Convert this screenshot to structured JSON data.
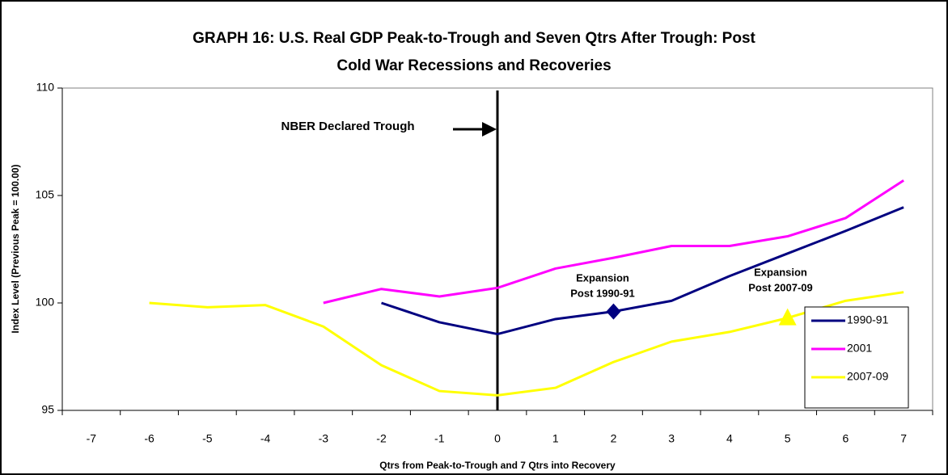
{
  "chart_data": {
    "type": "line",
    "title": [
      "GRAPH 16: U.S. Real GDP Peak-to-Trough and Seven Qtrs After Trough: Post",
      "Cold War Recessions and Recoveries"
    ],
    "x_label": "Qtrs from Peak-to-Trough and 7 Qtrs into Recovery",
    "y_label": "Index Level (Previous Peak = 100.00)",
    "categories": [
      -7,
      -6,
      -5,
      -4,
      -3,
      -2,
      -1,
      0,
      1,
      2,
      3,
      4,
      5,
      6,
      7
    ],
    "series": [
      {
        "name": "1990-91",
        "color": "#000080",
        "values": [
          null,
          null,
          null,
          null,
          null,
          100.0,
          99.1,
          98.55,
          99.25,
          99.6,
          100.1,
          101.25,
          102.3,
          103.35,
          104.45
        ],
        "marker": {
          "x": 2,
          "shape": "diamond"
        }
      },
      {
        "name": "2001",
        "color": "#ff00ff",
        "values": [
          null,
          null,
          null,
          null,
          100.0,
          100.65,
          100.3,
          100.7,
          101.6,
          102.1,
          102.65,
          102.65,
          103.1,
          103.95,
          105.7
        ]
      },
      {
        "name": "2007-09",
        "color": "#ffff00",
        "values": [
          null,
          100.0,
          99.8,
          99.9,
          98.9,
          97.1,
          95.9,
          95.7,
          96.05,
          97.25,
          98.2,
          98.65,
          99.3,
          100.1,
          100.5
        ],
        "marker": {
          "x": 5,
          "shape": "triangle"
        }
      }
    ],
    "ylim": [
      95,
      110
    ],
    "yticks": [
      95,
      100,
      105,
      110
    ],
    "grid": false,
    "vline": 0,
    "annotations": [
      {
        "lines": [
          "NBER Declared Trough"
        ]
      },
      {
        "lines": [
          "Expansion",
          "Post 1990-91"
        ]
      },
      {
        "lines": [
          "Expansion",
          "Post 2007-09"
        ]
      }
    ],
    "legend": "lower right"
  }
}
